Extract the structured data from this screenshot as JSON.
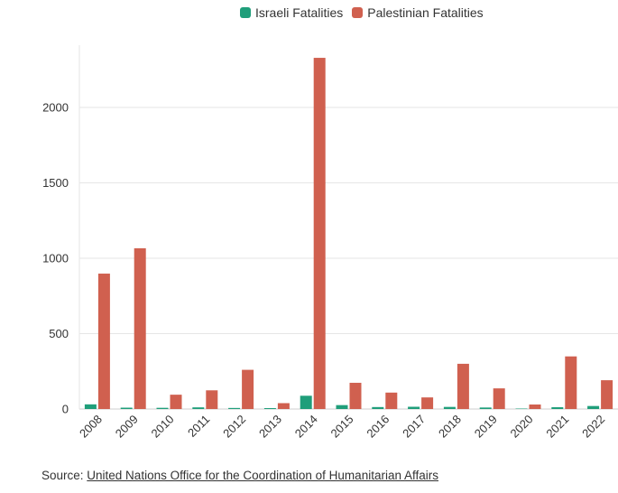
{
  "chart_data": {
    "type": "bar",
    "categories": [
      "2008",
      "2009",
      "2010",
      "2011",
      "2012",
      "2013",
      "2014",
      "2015",
      "2016",
      "2017",
      "2018",
      "2019",
      "2020",
      "2021",
      "2022"
    ],
    "series": [
      {
        "name": "Israeli Fatalities",
        "color": "#1f9e7a",
        "values": [
          31,
          9,
          8,
          11,
          7,
          6,
          88,
          26,
          13,
          15,
          14,
          10,
          3,
          12,
          20
        ]
      },
      {
        "name": "Palestinian Fatalities",
        "color": "#d0604f",
        "values": [
          898,
          1066,
          95,
          124,
          260,
          39,
          2329,
          174,
          109,
          77,
          300,
          137,
          30,
          349,
          191
        ]
      }
    ],
    "ylim": [
      0,
      2400
    ],
    "yticks": [
      "0",
      "500",
      "1000",
      "1500",
      "2000"
    ],
    "grid": true,
    "legend_position": "top"
  },
  "source": {
    "prefix": "Source: ",
    "link_text": "United Nations Office for the Coordination of Humanitarian Affairs"
  }
}
